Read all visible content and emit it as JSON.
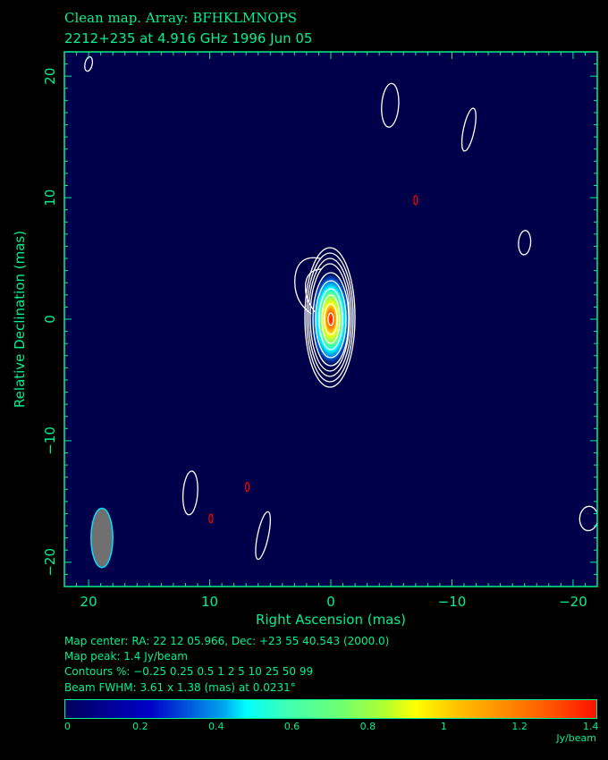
{
  "header": {
    "title_line1": "Clean map.  Array: BFHKLMNOPS",
    "title_line2": "2212+235 at 4.916 GHz 1996 Jun 05"
  },
  "info": {
    "map_center": "Map center:  RA: 22 12 05.966,  Dec: +23 55 40.543 (2000.0)",
    "map_peak": "Map peak: 1.4 Jy/beam",
    "contours": "Contours %: −0.25 0.25 0.5 1 2 5 10 25 50 99",
    "beam": "Beam FWHM: 3.61 x 1.38 (mas) at 0.0231°"
  },
  "chart_data": {
    "type": "heatmap",
    "xlabel": "Right Ascension  (mas)",
    "ylabel": "Relative Declination  (mas)",
    "xlim": [
      22,
      -22
    ],
    "ylim": [
      -22,
      22
    ],
    "x_ticks": [
      "20",
      "10",
      "0",
      "−10",
      "−20"
    ],
    "x_tick_values": [
      20,
      10,
      0,
      -10,
      -20
    ],
    "y_ticks": [
      "20",
      "10",
      "0",
      "−10",
      "−20"
    ],
    "y_tick_values": [
      20,
      10,
      0,
      -10,
      -20
    ],
    "peak_jy_per_beam": 1.4,
    "peak_position_mas": [
      0,
      0
    ],
    "contour_levels_percent": [
      -0.25,
      0.25,
      0.5,
      1,
      2,
      5,
      10,
      25,
      50,
      99
    ],
    "beam": {
      "major_mas": 3.61,
      "minor_mas": 1.38,
      "pa_deg": 0.0231,
      "position_mas": [
        18.9,
        -18
      ]
    },
    "positive_contours_mas": [
      {
        "x": 20.0,
        "y": 21.0,
        "rx": 0.3,
        "ry": 0.6
      },
      {
        "x": -4.9,
        "y": 17.6,
        "rx": 0.7,
        "ry": 1.8
      },
      {
        "x": -11.4,
        "y": 15.6,
        "rx": 0.45,
        "ry": 1.8
      },
      {
        "x": -16.0,
        "y": 6.3,
        "rx": 0.5,
        "ry": 1.0
      },
      {
        "x": 11.6,
        "y": -14.3,
        "rx": 0.6,
        "ry": 1.8
      },
      {
        "x": 5.6,
        "y": -17.8,
        "rx": 0.45,
        "ry": 2.0
      },
      {
        "x": -21.3,
        "y": -16.4,
        "rx": 0.75,
        "ry": 1.0
      }
    ],
    "negative_contours_mas": [
      {
        "x": -7.0,
        "y": 9.8
      },
      {
        "x": 6.9,
        "y": -13.8
      },
      {
        "x": 9.9,
        "y": -16.4
      }
    ],
    "colorbar": {
      "ticks": [
        "0",
        "0.2",
        "0.4",
        "0.6",
        "0.8",
        "1",
        "1.2",
        "1.4"
      ],
      "tick_values": [
        0,
        0.2,
        0.4,
        0.6,
        0.8,
        1,
        1.2,
        1.4
      ],
      "range": [
        0,
        1.4
      ],
      "unit": "Jy/beam"
    },
    "colors": {
      "text": "#00f090",
      "background": "#00004a",
      "contour": "#ffffff",
      "negative_contour": "#ff0000",
      "beam_fill": "#707070",
      "beam_edge": "#00e0ff"
    }
  }
}
